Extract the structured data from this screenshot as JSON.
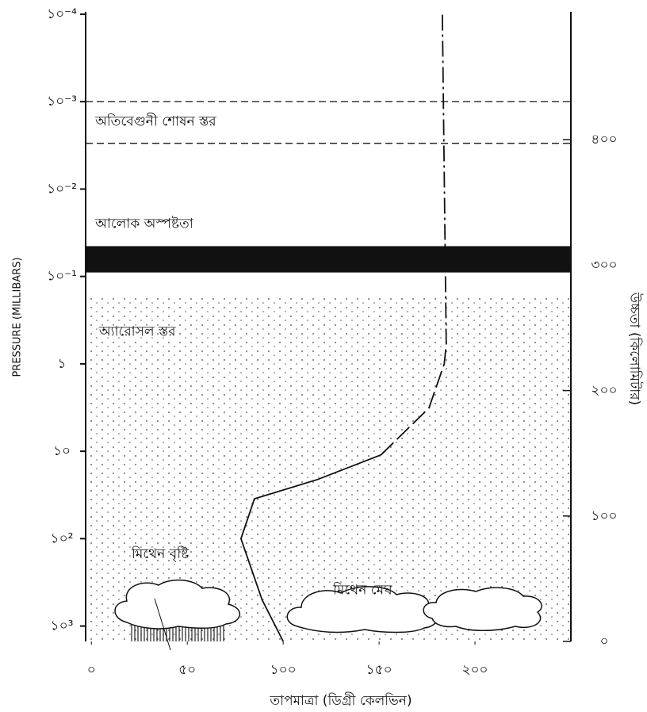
{
  "chart_data": {
    "type": "line",
    "x_label": "তাপমাত্রা (ডিগ্রী কেলভিন)",
    "y_label": "PRESSURE (MILLIBARS)",
    "y2_label": "উচ্চতা (কিলোমিটার)",
    "xlim": [
      -3,
      250
    ],
    "xticks": [
      {
        "value": 0,
        "label": "০"
      },
      {
        "value": 50,
        "label": "৫০"
      },
      {
        "value": 100,
        "label": "১০০"
      },
      {
        "value": 150,
        "label": "১৫০"
      },
      {
        "value": 200,
        "label": "২০০"
      }
    ],
    "ylim": [
      0.0001,
      1500
    ],
    "log_y": true,
    "yticks": [
      {
        "value": 0.0001,
        "label": "১০⁻⁴"
      },
      {
        "value": 0.001,
        "label": "১০⁻³"
      },
      {
        "value": 0.01,
        "label": "১০⁻²"
      },
      {
        "value": 0.1,
        "label": "১০⁻¹"
      },
      {
        "value": 1,
        "label": "১"
      },
      {
        "value": 10,
        "label": "১০"
      },
      {
        "value": 100,
        "label": "১০²"
      },
      {
        "value": 1000,
        "label": "১০³"
      }
    ],
    "y2lim": [
      0,
      500
    ],
    "y2ticks": [
      {
        "value": 0,
        "label": "০"
      },
      {
        "value": 100,
        "label": "১০০"
      },
      {
        "value": 200,
        "label": "২০০"
      },
      {
        "value": 300,
        "label": "৩০০"
      },
      {
        "value": 400,
        "label": "৪০০"
      }
    ],
    "series": [
      {
        "color": "#111111",
        "style": "solid",
        "x": [
          100,
          89,
          78,
          85,
          118,
          151
        ],
        "values": [
          1500,
          500,
          100,
          35,
          21,
          11
        ]
      },
      {
        "color": "#111111",
        "style": "dashed",
        "x": [
          151,
          176,
          184,
          185
        ],
        "values": [
          11,
          3.2,
          1,
          0.6
        ]
      },
      {
        "color": "#111111",
        "style": "dashdot",
        "x": [
          185,
          183
        ],
        "values": [
          0.6,
          0.0001
        ]
      }
    ],
    "hlines": [
      0.001,
      0.003
    ],
    "haze_band": [
      0.045,
      0.09
    ],
    "aerosol_region": [
      0.17,
      1500
    ],
    "annotations": [
      {
        "text": "অতিবেগুনী শোষন স্তর",
        "x": 2,
        "y": 0.0017
      },
      {
        "text": "আলোক অস্পষ্টতা",
        "x": 2,
        "y": 0.025
      },
      {
        "text": "অ্যারোসল স্তর",
        "x": 4,
        "y": 0.43
      },
      {
        "text": "মিথেন বৃষ্টি",
        "x": 21,
        "y": 150
      },
      {
        "text": "মিথেন মেঘ",
        "x": 126,
        "y": 390
      }
    ]
  }
}
